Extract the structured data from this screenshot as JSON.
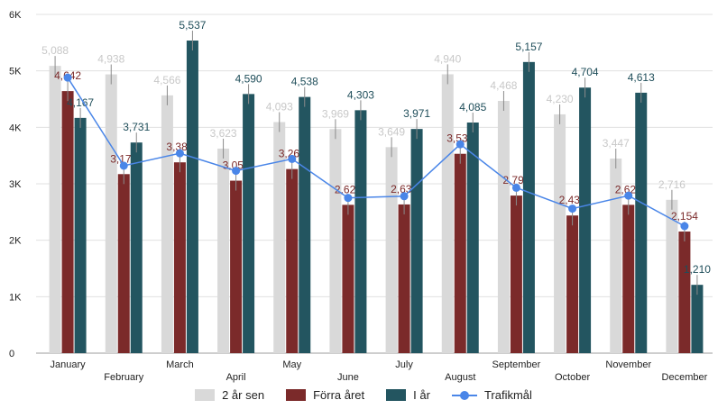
{
  "chart_data": {
    "type": "bar",
    "title": "",
    "xlabel": "",
    "ylabel": "",
    "ylim": [
      0,
      6000
    ],
    "yticks": [
      "0",
      "1K",
      "2K",
      "3K",
      "4K",
      "5K",
      "6K"
    ],
    "grid": true,
    "legend_position": "bottom",
    "categories": [
      "January",
      "February",
      "March",
      "April",
      "May",
      "June",
      "July",
      "August",
      "September",
      "October",
      "November",
      "December"
    ],
    "series": [
      {
        "name": "2 år sen",
        "kind": "bar",
        "color": "#d9d9d9",
        "label_color": "#c8c8c8",
        "values": [
          5088,
          4938,
          4566,
          3623,
          4093,
          3969,
          3649,
          4940,
          4468,
          4230,
          3447,
          2716
        ],
        "labels": [
          "5,088",
          "4,938",
          "4,566",
          "3,623",
          "4,093",
          "3,969",
          "3,649",
          "4,940",
          "4,468",
          "4,230",
          "3,447",
          "2,716"
        ]
      },
      {
        "name": "Förra året",
        "kind": "bar",
        "color": "#7b2a2a",
        "label_color": "#7b2a2a",
        "values": [
          4642,
          3171,
          3380,
          3055,
          3261,
          2627,
          2634,
          3531,
          2791,
          2438,
          2627,
          2154
        ],
        "labels": [
          "4,642",
          "3,171",
          "3,380",
          "3,055",
          "3,261",
          "2,627",
          "2,634",
          "3,531",
          "2,791",
          "2,438",
          "2,627",
          "2,154"
        ]
      },
      {
        "name": "I år",
        "kind": "bar",
        "color": "#235560",
        "label_color": "#1f4e5a",
        "values": [
          4167,
          3731,
          5537,
          4590,
          4538,
          4303,
          3971,
          4085,
          5157,
          4704,
          4613,
          1210
        ],
        "labels": [
          "4,167",
          "3,731",
          "5,537",
          "4,590",
          "4,538",
          "4,303",
          "3,971",
          "4,085",
          "5,157",
          "4,704",
          "4,613",
          "1,210"
        ]
      },
      {
        "name": "Trafikmål",
        "kind": "line",
        "color": "#4a86e8",
        "values": [
          4880,
          3320,
          3540,
          3230,
          3440,
          2750,
          2780,
          3700,
          2930,
          2560,
          2790,
          2250
        ]
      }
    ]
  }
}
